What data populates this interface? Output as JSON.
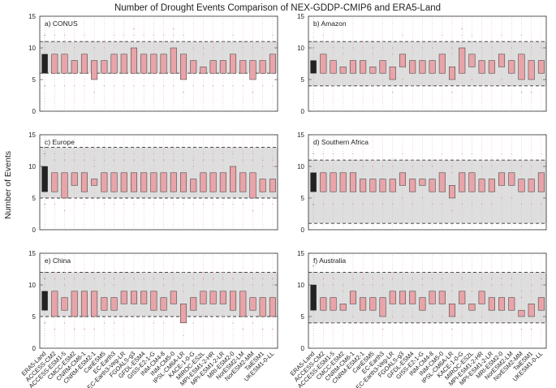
{
  "chart_data": {
    "type": "box",
    "title": "Number of Drought Events Comparison of NEX-GDDP-CMIP6 and ERA5-Land",
    "ylabel": "Number of Events",
    "ylim": [
      0,
      15
    ],
    "yticks": [
      0,
      5,
      10,
      15
    ],
    "colors": {
      "reference": "#222222",
      "models": "#e8a4a8",
      "band": "#dedede"
    },
    "categories": [
      "ERA5-Land",
      "ACCESS-CM2",
      "ACCESS-ESM1-5",
      "CMCC-ESM2",
      "CNRM-CM6-1",
      "CNRM-ESM2-1",
      "CanESM5",
      "EC-Earth3",
      "EC-Earth3-Veg-LR",
      "FGOALS-g3",
      "GFDL-ESM4",
      "GISS-E2-1-G",
      "INM-CM4-8",
      "INM-CM5-0",
      "IPSL-CM6A-LR",
      "KACE-1-0-G",
      "MIROC-ES2L",
      "MPI-ESM1-2-HR",
      "MPI-ESM1-2-LR",
      "MRI-ESM2-0",
      "NorESM2-LM",
      "NorESM2-MM",
      "TaiESM1",
      "UKESM1-0-LL"
    ],
    "panels": [
      {
        "label": "a) CONUS",
        "band": [
          6,
          11
        ],
        "q1": [
          6,
          6,
          6,
          6,
          6,
          5,
          6,
          6,
          6,
          6,
          6,
          6,
          6,
          6,
          5,
          6,
          6,
          6,
          6,
          6,
          6,
          5,
          6,
          6
        ],
        "q3": [
          9,
          9,
          9,
          8,
          9,
          8,
          8,
          9,
          9,
          10,
          9,
          9,
          9,
          10,
          9,
          8,
          7,
          8,
          8,
          9,
          8,
          8,
          8,
          9
        ]
      },
      {
        "label": "b) Amazon",
        "band": [
          4,
          11
        ],
        "q1": [
          6,
          6,
          6,
          6,
          6,
          6,
          6,
          6,
          5,
          7,
          6,
          6,
          6,
          6,
          5,
          6,
          7,
          6,
          6,
          7,
          6,
          5,
          5,
          6
        ],
        "q3": [
          8,
          9,
          8,
          7,
          8,
          8,
          7,
          8,
          7,
          9,
          8,
          8,
          8,
          9,
          7,
          10,
          9,
          8,
          8,
          9,
          8,
          9,
          8,
          8
        ]
      },
      {
        "label": "c) Europe",
        "band": [
          5,
          13
        ],
        "q1": [
          6,
          6,
          5,
          7,
          6,
          7,
          6,
          6,
          6,
          6,
          6,
          6,
          6,
          6,
          6,
          6,
          6,
          6,
          6,
          6,
          6,
          5,
          6,
          6
        ],
        "q3": [
          10,
          9,
          9,
          9,
          9,
          8,
          9,
          9,
          9,
          9,
          9,
          9,
          9,
          9,
          9,
          8,
          9,
          9,
          9,
          10,
          9,
          9,
          8,
          8
        ]
      },
      {
        "label": "d) Southern Africa",
        "band": [
          1,
          11
        ],
        "q1": [
          6,
          6,
          6,
          6,
          6,
          6,
          6,
          6,
          6,
          7,
          6,
          7,
          6,
          6,
          5,
          6,
          6,
          6,
          6,
          7,
          7,
          6,
          6,
          6
        ],
        "q3": [
          9,
          9,
          9,
          9,
          9,
          8,
          8,
          8,
          8,
          9,
          8,
          8,
          8,
          9,
          7,
          9,
          9,
          8,
          8,
          9,
          9,
          8,
          8,
          9
        ]
      },
      {
        "label": "e) China",
        "band": [
          5,
          12
        ],
        "q1": [
          6,
          5,
          6,
          5,
          5,
          5,
          6,
          6,
          7,
          7,
          7,
          6,
          6,
          7,
          4,
          6,
          7,
          7,
          7,
          6,
          5,
          6,
          5,
          5
        ],
        "q3": [
          9,
          9,
          8,
          9,
          9,
          9,
          8,
          8,
          9,
          9,
          9,
          9,
          8,
          9,
          7,
          8,
          9,
          9,
          9,
          9,
          9,
          8,
          8,
          8
        ]
      },
      {
        "label": "f) Australia",
        "band": [
          4,
          12
        ],
        "q1": [
          6,
          6,
          6,
          6,
          7,
          6,
          6,
          5,
          7,
          7,
          7,
          6,
          7,
          7,
          5,
          7,
          6,
          7,
          6,
          6,
          6,
          5,
          5,
          6
        ],
        "q3": [
          10,
          8,
          8,
          7,
          9,
          8,
          8,
          8,
          9,
          9,
          9,
          8,
          9,
          9,
          7,
          9,
          7,
          9,
          8,
          8,
          8,
          6,
          7,
          8
        ]
      }
    ]
  }
}
